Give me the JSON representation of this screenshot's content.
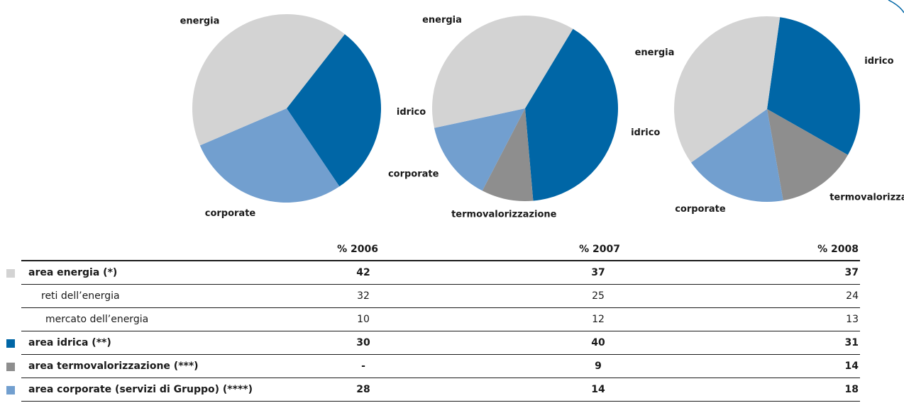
{
  "chart_data": [
    {
      "type": "pie",
      "categories": [
        "idrico",
        "corporate",
        "energia"
      ],
      "values": [
        30,
        28,
        42
      ],
      "colors": [
        "#0066a6",
        "#729fcf",
        "#d3d3d3"
      ]
    },
    {
      "type": "pie",
      "categories": [
        "idrico",
        "termovalorizzazione",
        "corporate",
        "energia"
      ],
      "values": [
        40,
        9,
        14,
        37
      ],
      "colors": [
        "#0066a6",
        "#8e8e8e",
        "#729fcf",
        "#d3d3d3"
      ]
    },
    {
      "type": "pie",
      "categories": [
        "idrico",
        "termovalorizzazione",
        "corporate",
        "energia"
      ],
      "values": [
        31,
        14,
        18,
        37
      ],
      "colors": [
        "#0066a6",
        "#8e8e8e",
        "#729fcf",
        "#d3d3d3"
      ]
    }
  ],
  "table": {
    "header": [
      "% 2006",
      "% 2007",
      "% 2008"
    ],
    "rows": [
      {
        "label": "area energia (*)",
        "values": [
          "42",
          "37",
          "37"
        ],
        "color": "#d3d3d3",
        "bold": true
      },
      {
        "label": "reti dell’energia",
        "values": [
          "32",
          "25",
          "24"
        ],
        "bold": false
      },
      {
        "label": "mercato dell’energia",
        "values": [
          "10",
          "12",
          "13"
        ],
        "bold": false
      },
      {
        "label": "area idrica (**)",
        "values": [
          "30",
          "40",
          "31"
        ],
        "color": "#0066a6",
        "bold": true
      },
      {
        "label": "area termovalorizzazione (***)",
        "values": [
          "-",
          "9",
          "14"
        ],
        "color": "#8e8e8e",
        "bold": true
      },
      {
        "label": "area corporate (servizi di Gruppo) (****)",
        "values": [
          "28",
          "14",
          "18"
        ],
        "color": "#729fcf",
        "bold": true
      }
    ]
  }
}
